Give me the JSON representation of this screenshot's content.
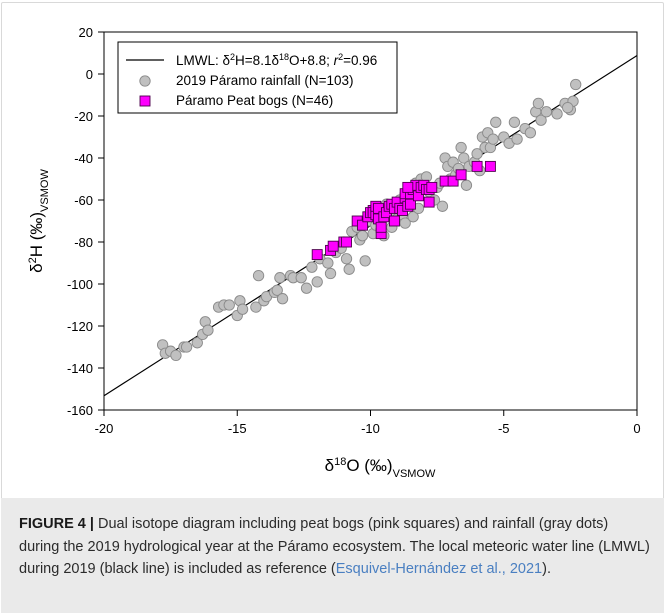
{
  "chart_data": {
    "type": "scatter",
    "xlim": [
      -20,
      0
    ],
    "ylim": [
      -160,
      20
    ],
    "x_ticks": [
      "-20",
      "-15",
      "-10",
      "-5",
      "0"
    ],
    "y_ticks": [
      "20",
      "0",
      "-20",
      "-40",
      "-60",
      "-80",
      "-100",
      "-120",
      "-140",
      "-160"
    ],
    "grid": false,
    "legend_placement": "top-left",
    "xlabel": "δ18O (‰)VSMOW",
    "ylabel": "δ2H (‰)VSMOW",
    "legend": [
      "LMWL: δ2H=8.1δ18O+8.8; r2=0.96",
      "2019 Páramo rainfall (N=103)",
      "Páramo Peat bogs (N=46)"
    ],
    "lmwl": {
      "slope": 8.1,
      "intercept": 8.8,
      "r2": 0.96,
      "color": "#000000"
    },
    "series": [
      {
        "name": "2019 Páramo rainfall (N=103)",
        "marker": "circle",
        "color": "#c0c0c0",
        "stroke": "#8a8a8a",
        "points": [
          [
            -17.8,
            -129
          ],
          [
            -17.7,
            -133
          ],
          [
            -17.5,
            -132
          ],
          [
            -17.3,
            -134
          ],
          [
            -17.0,
            -130
          ],
          [
            -16.9,
            -130
          ],
          [
            -16.5,
            -128
          ],
          [
            -16.3,
            -124
          ],
          [
            -16.2,
            -118
          ],
          [
            -16.1,
            -122
          ],
          [
            -15.7,
            -111
          ],
          [
            -15.5,
            -110
          ],
          [
            -15.3,
            -110
          ],
          [
            -15.0,
            -115
          ],
          [
            -14.9,
            -108
          ],
          [
            -14.8,
            -112
          ],
          [
            -14.3,
            -111
          ],
          [
            -14.2,
            -96
          ],
          [
            -14.0,
            -108
          ],
          [
            -13.9,
            -106
          ],
          [
            -13.6,
            -104
          ],
          [
            -13.5,
            -103
          ],
          [
            -13.4,
            -97
          ],
          [
            -13.3,
            -107
          ],
          [
            -13.0,
            -96
          ],
          [
            -12.9,
            -97
          ],
          [
            -12.6,
            -97
          ],
          [
            -12.4,
            -102
          ],
          [
            -12.2,
            -92
          ],
          [
            -12.0,
            -99
          ],
          [
            -11.9,
            -88
          ],
          [
            -11.6,
            -90
          ],
          [
            -11.5,
            -95
          ],
          [
            -11.3,
            -85
          ],
          [
            -11.1,
            -83
          ],
          [
            -11.0,
            -80
          ],
          [
            -10.9,
            -88
          ],
          [
            -10.8,
            -93
          ],
          [
            -10.7,
            -75
          ],
          [
            -10.5,
            -73
          ],
          [
            -10.4,
            -79
          ],
          [
            -10.3,
            -77
          ],
          [
            -10.2,
            -89
          ],
          [
            -10.0,
            -70
          ],
          [
            -9.9,
            -76
          ],
          [
            -9.8,
            -72
          ],
          [
            -9.6,
            -71
          ],
          [
            -9.5,
            -77
          ],
          [
            -9.4,
            -62
          ],
          [
            -9.3,
            -67
          ],
          [
            -9.2,
            -73
          ],
          [
            -9.0,
            -69
          ],
          [
            -8.9,
            -60
          ],
          [
            -8.8,
            -67
          ],
          [
            -8.7,
            -71
          ],
          [
            -8.5,
            -60
          ],
          [
            -8.4,
            -68
          ],
          [
            -8.3,
            -52
          ],
          [
            -8.2,
            -64
          ],
          [
            -8.1,
            -50
          ],
          [
            -8.0,
            -55
          ],
          [
            -7.9,
            -49
          ],
          [
            -7.8,
            -56
          ],
          [
            -7.6,
            -60
          ],
          [
            -7.5,
            -54
          ],
          [
            -7.4,
            -52
          ],
          [
            -7.3,
            -63
          ],
          [
            -7.2,
            -40
          ],
          [
            -7.1,
            -44
          ],
          [
            -7.0,
            -50
          ],
          [
            -6.9,
            -42
          ],
          [
            -6.8,
            -48
          ],
          [
            -6.7,
            -45
          ],
          [
            -6.6,
            -35
          ],
          [
            -6.5,
            -40
          ],
          [
            -6.4,
            -53
          ],
          [
            -6.3,
            -44
          ],
          [
            -6.1,
            -42
          ],
          [
            -5.9,
            -46
          ],
          [
            -5.8,
            -30
          ],
          [
            -5.7,
            -35
          ],
          [
            -5.6,
            -28
          ],
          [
            -5.5,
            -35
          ],
          [
            -5.4,
            -31
          ],
          [
            -5.3,
            -23
          ],
          [
            -5.0,
            -30
          ],
          [
            -4.8,
            -33
          ],
          [
            -4.5,
            -31
          ],
          [
            -4.2,
            -26
          ],
          [
            -4.0,
            -28
          ],
          [
            -3.8,
            -18
          ],
          [
            -3.6,
            -22
          ],
          [
            -3.7,
            -14
          ],
          [
            -3.4,
            -18
          ],
          [
            -3.0,
            -19
          ],
          [
            -2.7,
            -14
          ],
          [
            -2.5,
            -17
          ],
          [
            -2.4,
            -13
          ],
          [
            -2.3,
            -5
          ],
          [
            -2.6,
            -16
          ],
          [
            -4.6,
            -23
          ],
          [
            -6.0,
            -38
          ],
          [
            -9.7,
            -65
          ]
        ]
      },
      {
        "name": "Páramo Peat bogs (N=46)",
        "marker": "square",
        "color": "#ff00ff",
        "stroke": "#4d004d",
        "points": [
          [
            -12.0,
            -86
          ],
          [
            -11.5,
            -84
          ],
          [
            -11.4,
            -82
          ],
          [
            -11.0,
            -80
          ],
          [
            -10.9,
            -80
          ],
          [
            -10.5,
            -70
          ],
          [
            -10.3,
            -72
          ],
          [
            -10.1,
            -68
          ],
          [
            -10.0,
            -66
          ],
          [
            -9.9,
            -65
          ],
          [
            -9.9,
            -66
          ],
          [
            -9.8,
            -67
          ],
          [
            -9.8,
            -63
          ],
          [
            -9.7,
            -64
          ],
          [
            -9.7,
            -69
          ],
          [
            -9.6,
            -76
          ],
          [
            -9.6,
            -73
          ],
          [
            -9.5,
            -68
          ],
          [
            -9.4,
            -66
          ],
          [
            -9.3,
            -63
          ],
          [
            -9.2,
            -62
          ],
          [
            -9.1,
            -64
          ],
          [
            -9.1,
            -70
          ],
          [
            -9.0,
            -61
          ],
          [
            -8.9,
            -64
          ],
          [
            -8.8,
            -65
          ],
          [
            -8.7,
            -59
          ],
          [
            -8.7,
            -57
          ],
          [
            -8.6,
            -63
          ],
          [
            -8.5,
            -62
          ],
          [
            -8.5,
            -57
          ],
          [
            -8.4,
            -55
          ],
          [
            -8.3,
            -53
          ],
          [
            -8.2,
            -58
          ],
          [
            -8.1,
            -54
          ],
          [
            -8.0,
            -53
          ],
          [
            -7.9,
            -55
          ],
          [
            -7.8,
            -55
          ],
          [
            -7.8,
            -61
          ],
          [
            -7.7,
            -54
          ],
          [
            -7.2,
            -51
          ],
          [
            -6.9,
            -51
          ],
          [
            -6.6,
            -48
          ],
          [
            -6.0,
            -44
          ],
          [
            -5.5,
            -44
          ],
          [
            -8.6,
            -54
          ]
        ]
      }
    ]
  },
  "caption": {
    "label": "FIGURE 4 |",
    "text": " Dual isotope diagram including peat bogs (pink squares) and rainfall (gray dots) during the 2019 hydrological year at the Páramo ecosystem. The local meteoric water line (LMWL) during 2019 (black line) is included as reference (",
    "reference": "Esquivel-Hernández et al., 2021",
    "suffix": ")."
  }
}
